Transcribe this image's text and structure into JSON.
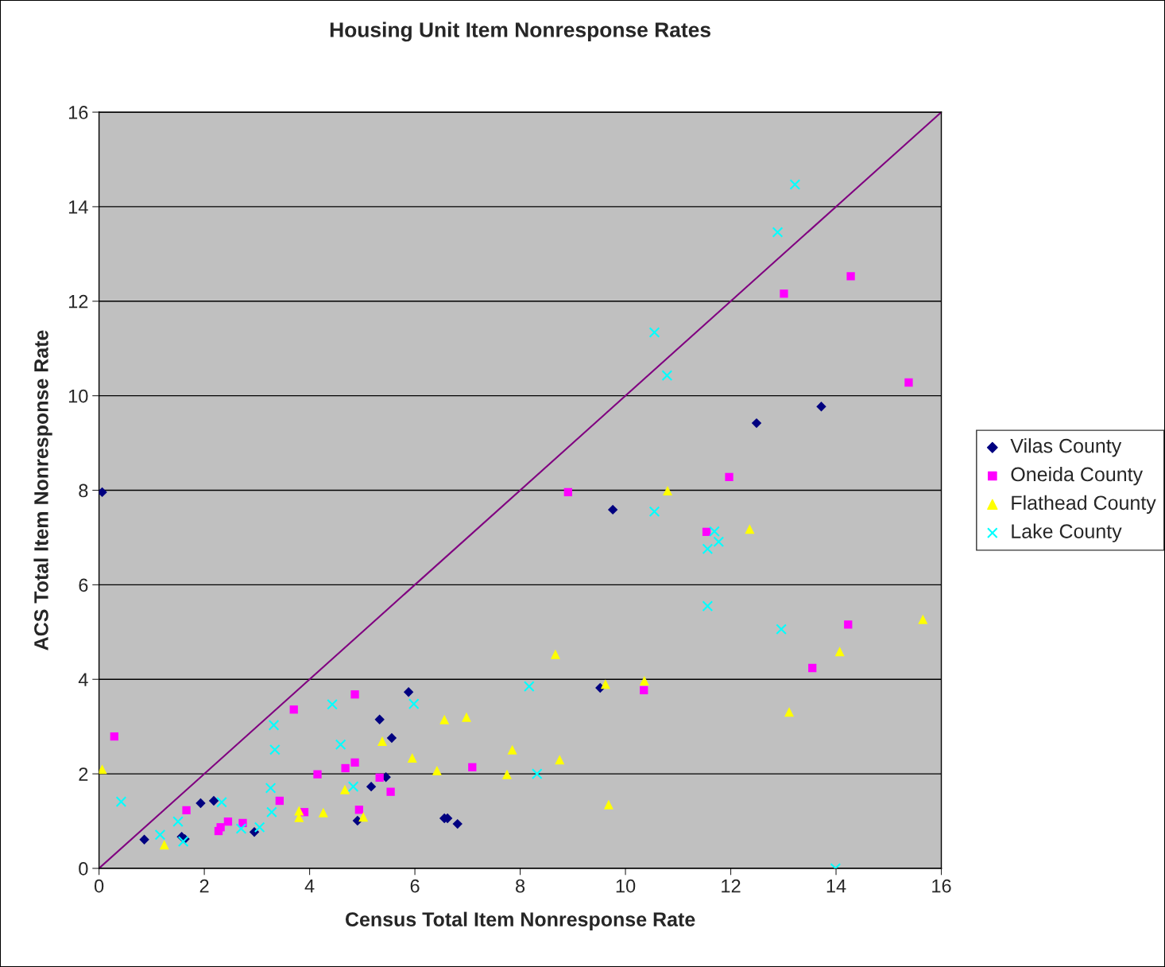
{
  "chart_data": {
    "type": "scatter",
    "title": "Housing Unit Item Nonresponse Rates",
    "xlabel": "Census Total Item Nonresponse Rate",
    "ylabel": "ACS Total Item Nonresponse Rate",
    "xlim": [
      0,
      16
    ],
    "ylim": [
      0,
      16
    ],
    "xticks": [
      0,
      2,
      4,
      6,
      8,
      10,
      12,
      14,
      16
    ],
    "yticks": [
      0,
      2,
      4,
      6,
      8,
      10,
      12,
      14,
      16
    ],
    "grid": "y",
    "legend": "right",
    "series": [
      {
        "name": "Vilas County",
        "color": "#000080",
        "marker": "diamond",
        "x": [
          0.06,
          0.86,
          1.57,
          1.63,
          1.93,
          2.18,
          2.95,
          4.91,
          5.17,
          5.33,
          5.45,
          5.56,
          5.88,
          6.56,
          6.62,
          6.81,
          9.52,
          9.76,
          12.49,
          13.72
        ],
        "values": [
          7.96,
          0.61,
          0.67,
          0.62,
          1.38,
          1.43,
          0.77,
          1.01,
          1.73,
          3.15,
          1.93,
          2.76,
          3.73,
          1.06,
          1.06,
          0.94,
          3.82,
          7.59,
          9.42,
          9.77
        ]
      },
      {
        "name": "Oneida County",
        "color": "#ff00ff",
        "marker": "square",
        "x": [
          0.29,
          1.66,
          2.27,
          2.31,
          2.45,
          2.73,
          3.43,
          3.7,
          3.9,
          4.15,
          4.68,
          4.86,
          4.86,
          4.94,
          5.33,
          5.54,
          7.09,
          8.91,
          10.35,
          11.54,
          11.97,
          13.01,
          13.55,
          14.23,
          14.28,
          15.38
        ],
        "values": [
          2.79,
          1.23,
          0.79,
          0.87,
          0.99,
          0.96,
          1.43,
          3.36,
          1.19,
          1.99,
          2.12,
          3.68,
          2.24,
          1.24,
          1.92,
          1.62,
          2.14,
          7.96,
          3.77,
          7.12,
          8.28,
          12.16,
          4.24,
          5.16,
          12.53,
          10.28
        ]
      },
      {
        "name": "Flathead County",
        "color": "#ffff00",
        "marker": "triangle",
        "x": [
          0.06,
          1.24,
          3.8,
          3.8,
          4.26,
          4.67,
          5.02,
          5.38,
          5.95,
          6.42,
          6.56,
          6.98,
          7.75,
          7.85,
          8.67,
          8.75,
          9.62,
          9.68,
          10.36,
          10.8,
          12.36,
          13.11,
          14.07,
          15.65
        ],
        "values": [
          2.1,
          0.5,
          1.08,
          1.22,
          1.18,
          1.67,
          1.09,
          2.69,
          2.34,
          2.07,
          3.15,
          3.2,
          1.99,
          2.51,
          4.53,
          2.3,
          3.9,
          1.35,
          3.97,
          7.99,
          7.18,
          3.31,
          4.59,
          5.27
        ]
      },
      {
        "name": "Lake County",
        "color": "#00ffff",
        "marker": "cross",
        "x": [
          0.42,
          1.16,
          1.5,
          1.6,
          2.33,
          2.7,
          3.05,
          3.26,
          3.28,
          3.32,
          3.34,
          4.43,
          4.59,
          4.83,
          5.98,
          8.17,
          8.32,
          10.55,
          10.55,
          10.79,
          11.56,
          11.56,
          11.69,
          11.77,
          12.89,
          12.96,
          13.22,
          13.99
        ],
        "values": [
          1.41,
          0.71,
          0.99,
          0.57,
          1.4,
          0.84,
          0.87,
          1.7,
          1.19,
          3.03,
          2.51,
          3.47,
          2.62,
          1.73,
          3.48,
          3.85,
          2.0,
          7.55,
          11.34,
          10.43,
          6.76,
          5.55,
          7.13,
          6.91,
          13.46,
          5.06,
          14.47,
          0.0
        ]
      },
      {
        "type": "line",
        "color": "#800080",
        "marker": "none",
        "line_style": "solid",
        "x": [
          0,
          16
        ],
        "values": [
          0,
          16
        ]
      }
    ]
  }
}
